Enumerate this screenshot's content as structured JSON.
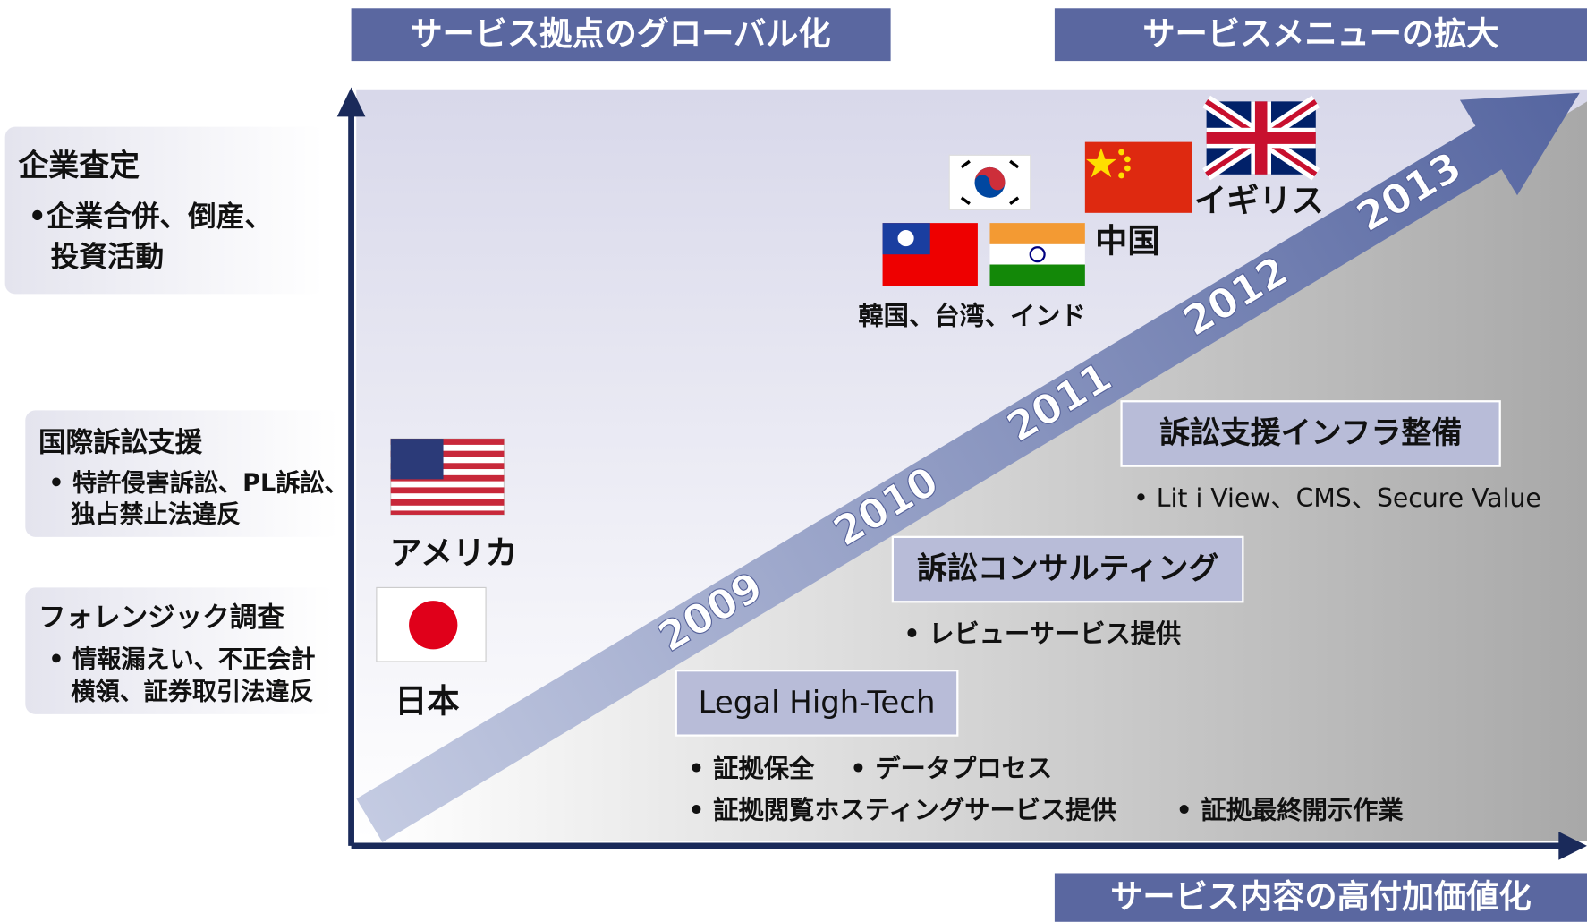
{
  "headers": {
    "global": "サービス拠点のグローバル化",
    "menu": "サービスメニューの拡大",
    "value_add": "サービス内容の高付加価値化"
  },
  "left_panels": [
    {
      "title": "企業査定",
      "lines": [
        "•企業合併、倒産、",
        "投資活動"
      ]
    },
    {
      "title": "国際訴訟支援",
      "lines": [
        "• 特許侵害訴訟、PL訴訟、",
        "独占禁止法違反"
      ]
    },
    {
      "title": "フォレンジック調査",
      "lines": [
        "• 情報漏えい、不正会計",
        "横領、証券取引法違反"
      ]
    }
  ],
  "years": [
    "2009",
    "2010",
    "2011",
    "2012",
    "2013"
  ],
  "countries": {
    "usa": "アメリカ",
    "japan": "日本",
    "asia": "韓国、台湾、インド",
    "china": "中国",
    "uk": "イギリス"
  },
  "services": [
    {
      "title": "Legal High-Tech",
      "bullets": [
        "• 証拠保全",
        "• データプロセス",
        "• 証拠閲覧ホスティングサービス提供",
        "• 証拠最終開示作業"
      ]
    },
    {
      "title": "訴訟コンサルティング",
      "bullets": [
        "• レビューサービス提供"
      ]
    },
    {
      "title": "訴訟支援インフラ整備",
      "bullets": [
        "• Lit i View、CMS、Secure Value"
      ]
    }
  ]
}
